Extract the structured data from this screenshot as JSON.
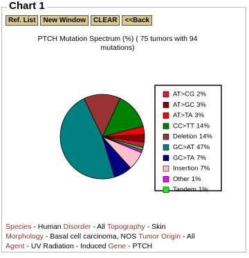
{
  "header": {
    "title": "Chart 1"
  },
  "buttons": [
    "Ref. List",
    "New Window",
    "CLEAR",
    "<<Back"
  ],
  "chart_data": {
    "type": "pie",
    "title": "PTCH Mutation Spectrum (%) ( 75 tumors with  94 mutations)",
    "categories": [
      "AT>CG",
      "AT>GC",
      "AT>TA",
      "CC>TT",
      "Deletion",
      "GC>AT",
      "GC>TA",
      "Insertion",
      "Other",
      "Tandem"
    ],
    "values": [
      2,
      3,
      3,
      14,
      14,
      47,
      7,
      7,
      1,
      1
    ],
    "value_labels": [
      "2%",
      "3%",
      "3%",
      "14%",
      "14%",
      "47%",
      "7%",
      "7%",
      "1%",
      "1%"
    ],
    "colors": [
      "#dc143c",
      "#8b0000",
      "#ff0000",
      "#008000",
      "#993333",
      "#008080",
      "#000080",
      "#ffc0cb",
      "#ff00ff",
      "#00ff00"
    ]
  },
  "footer": {
    "lines": [
      [
        {
          "label": "Species",
          "value": "- Human"
        },
        {
          "label": "Disorder",
          "value": "- All"
        },
        {
          "label": "Topography",
          "value": "- Skin"
        }
      ],
      [
        {
          "label": "Morphology",
          "value": "- Basal cell carcinoma, NOS"
        },
        {
          "label": "Tumor Origin",
          "value": "- All"
        }
      ],
      [
        {
          "label": "Agent",
          "value": "- UV Radiation - Induced"
        },
        {
          "label": "Gene",
          "value": "- PTCH"
        }
      ]
    ]
  }
}
